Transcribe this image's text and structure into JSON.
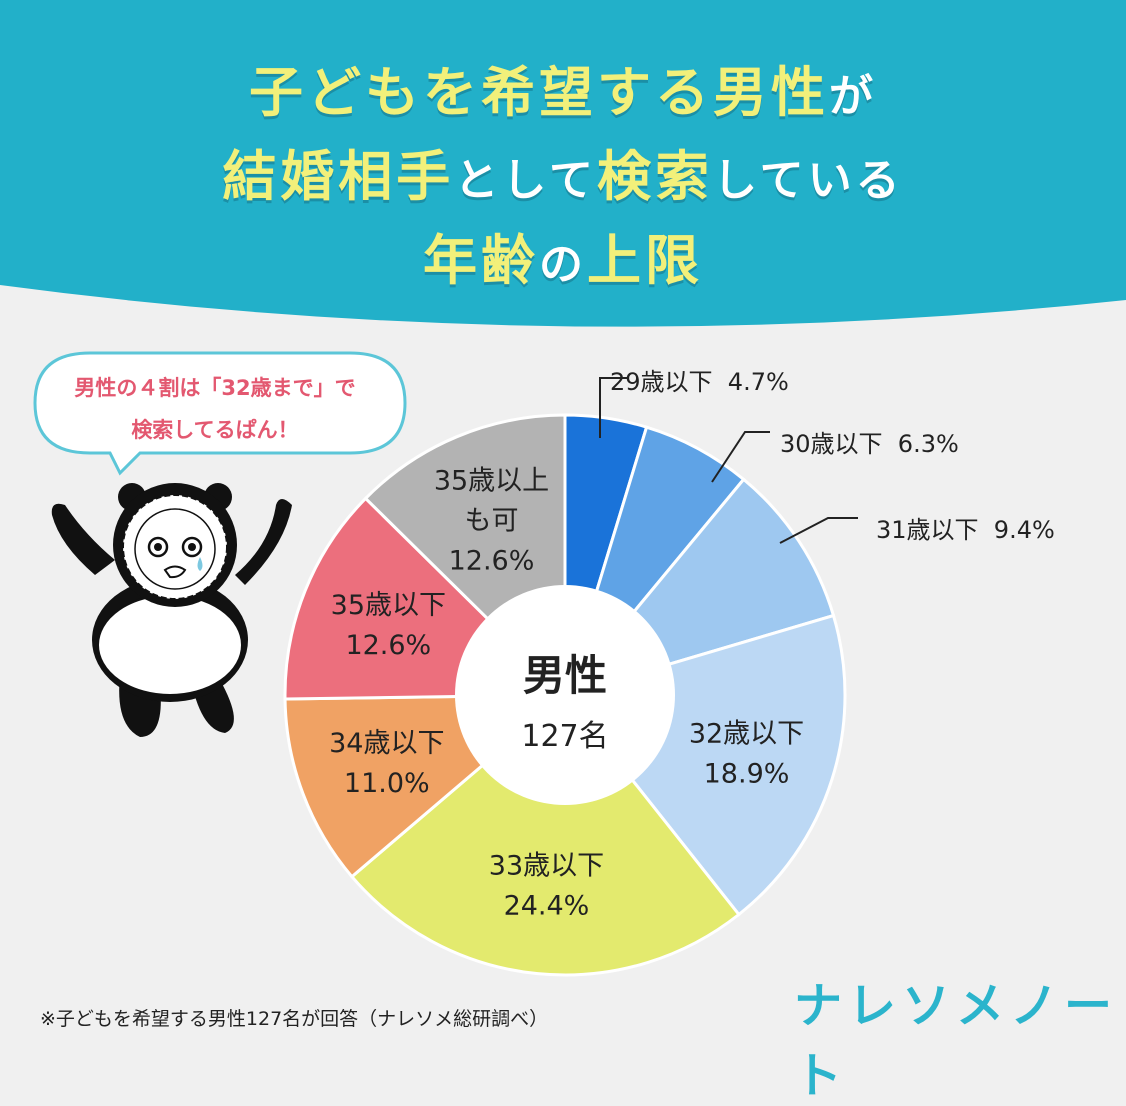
{
  "title": {
    "line1": {
      "part1": "子どもを希望する男性",
      "part2": "が"
    },
    "line2": {
      "part1": "結婚相手",
      "part2": "として",
      "part3": "検索",
      "part4": "している"
    },
    "line3": {
      "part1": "年齢",
      "part2": "の",
      "part3": "上限"
    }
  },
  "bubble": {
    "line1": "男性の４割は「32歳まで」で",
    "line2": "検索してるぱん！"
  },
  "chart_data": {
    "type": "pie",
    "center_label": "男性",
    "center_count": "127名",
    "slices": [
      {
        "label": "29歳以下",
        "value": 4.7,
        "value_text": "4.7%",
        "color": "#1a73d9"
      },
      {
        "label": "30歳以下",
        "value": 6.3,
        "value_text": "6.3%",
        "color": "#5fa3e6"
      },
      {
        "label": "31歳以下",
        "value": 9.4,
        "value_text": "9.4%",
        "color": "#9ec8f0"
      },
      {
        "label": "32歳以下",
        "value": 18.9,
        "value_text": "18.9%",
        "color": "#bcd8f4"
      },
      {
        "label": "33歳以下",
        "value": 24.4,
        "value_text": "24.4%",
        "color": "#e3ea6e"
      },
      {
        "label": "34歳以下",
        "value": 11.0,
        "value_text": "11.0%",
        "color": "#f0a264"
      },
      {
        "label": "35歳以下",
        "value": 12.6,
        "value_text": "12.6%",
        "color": "#ec6f7d"
      },
      {
        "label": "35歳以上も可",
        "label_lines": [
          "35歳以上",
          "も可"
        ],
        "value": 12.6,
        "value_text": "12.6%",
        "color": "#b3b3b3"
      }
    ]
  },
  "colors": {
    "banner": "#22b0c9",
    "title_yellow": "#f2f07a",
    "bubble_border": "#5cc6d8",
    "bubble_text": "#e35870",
    "logo": "#2bb4cc"
  },
  "footnote": "※子どもを希望する男性127名が回答（ナレソメ総研調べ）",
  "logo": "ナレソメノート"
}
